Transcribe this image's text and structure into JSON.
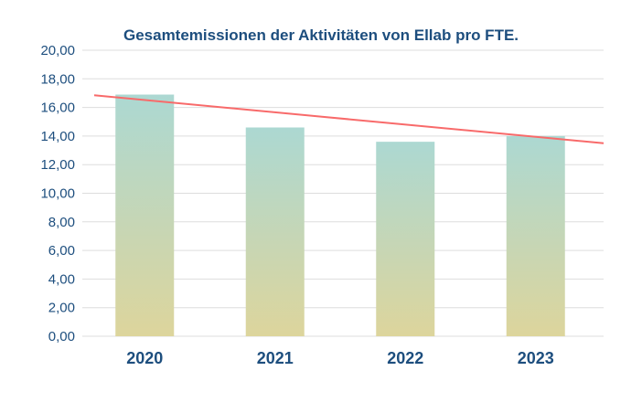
{
  "chart_data": {
    "type": "bar",
    "title": "Gesamtemissionen der Aktivitäten von Ellab pro FTE.",
    "categories": [
      "2020",
      "2021",
      "2022",
      "2023"
    ],
    "values": [
      16.9,
      14.6,
      13.6,
      14.0
    ],
    "ylim": [
      0,
      20
    ],
    "yticks": [
      "0,00",
      "2,00",
      "4,00",
      "6,00",
      "8,00",
      "10,00",
      "12,00",
      "14,00",
      "16,00",
      "18,00",
      "20,00"
    ],
    "grid": true,
    "trendline": {
      "type": "linear",
      "start": 16.85,
      "end": 13.5
    },
    "colors": {
      "bar_top": "#acd8d2",
      "bar_bottom": "#ddd59c",
      "trendline": "#f86a6a",
      "text": "#1d4e7e",
      "grid": "#dddddd"
    }
  }
}
